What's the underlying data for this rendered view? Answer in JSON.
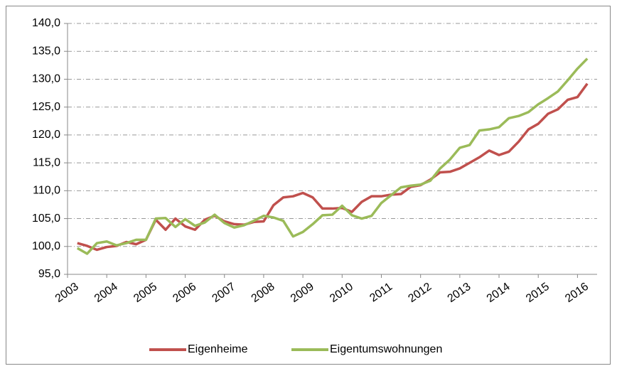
{
  "chart_data": {
    "type": "line",
    "x": [
      2003.25,
      2003.5,
      2003.75,
      2004,
      2004.25,
      2004.5,
      2004.75,
      2005,
      2005.25,
      2005.5,
      2005.75,
      2006,
      2006.25,
      2006.5,
      2006.75,
      2007,
      2007.25,
      2007.5,
      2007.75,
      2008,
      2008.25,
      2008.5,
      2008.75,
      2009,
      2009.25,
      2009.5,
      2009.75,
      2010,
      2010.25,
      2010.5,
      2010.75,
      2011,
      2011.25,
      2011.5,
      2011.75,
      2012,
      2012.25,
      2012.5,
      2012.75,
      2013,
      2013.25,
      2013.5,
      2013.75,
      2014,
      2014.25,
      2014.5,
      2014.75,
      2015,
      2015.25,
      2015.5,
      2015.75,
      2016,
      2016.25
    ],
    "series": [
      {
        "name": "Eigenheime",
        "color": "#c0504d",
        "values": [
          100.6,
          100.1,
          99.4,
          99.9,
          100.1,
          100.8,
          100.4,
          101.2,
          104.8,
          103.0,
          105.0,
          103.6,
          103.0,
          104.8,
          105.5,
          104.5,
          104.0,
          103.9,
          104.4,
          104.5,
          107.4,
          108.8,
          109.0,
          109.6,
          108.8,
          106.8,
          106.8,
          106.9,
          106.2,
          108.0,
          109.0,
          109.0,
          109.3,
          109.4,
          110.7,
          111.0,
          112.0,
          113.3,
          113.4,
          114.0,
          115.0,
          116.0,
          117.2,
          116.4,
          117.0,
          118.8,
          121.0,
          122.0,
          123.8,
          124.6,
          126.3,
          126.8,
          129.2
        ]
      },
      {
        "name": "Eigentumswohnungen",
        "color": "#9bbb59",
        "values": [
          99.7,
          98.7,
          100.6,
          100.9,
          100.2,
          100.6,
          101.2,
          101.2,
          105.0,
          105.1,
          103.5,
          104.9,
          103.7,
          104.3,
          105.7,
          104.2,
          103.4,
          103.8,
          104.6,
          105.5,
          105.2,
          104.6,
          101.8,
          102.6,
          104.0,
          105.6,
          105.7,
          107.3,
          105.6,
          105.0,
          105.5,
          107.8,
          109.2,
          110.6,
          110.9,
          111.1,
          111.8,
          114.0,
          115.6,
          117.7,
          118.2,
          120.8,
          121.0,
          121.4,
          123.0,
          123.4,
          124.1,
          125.5,
          126.6,
          127.8,
          129.8,
          131.9,
          133.7
        ]
      }
    ],
    "xlim": [
      2003,
      2016.5
    ],
    "xticks": [
      2003,
      2004,
      2005,
      2006,
      2007,
      2008,
      2009,
      2010,
      2011,
      2012,
      2013,
      2014,
      2015,
      2016
    ],
    "ylim": [
      95,
      140
    ],
    "yticks": [
      {
        "value": 95,
        "label": "95,0"
      },
      {
        "value": 100,
        "label": "100,0"
      },
      {
        "value": 105,
        "label": "105,0"
      },
      {
        "value": 110,
        "label": "110,0"
      },
      {
        "value": 115,
        "label": "115,0"
      },
      {
        "value": 120,
        "label": "120,0"
      },
      {
        "value": 125,
        "label": "125,0"
      },
      {
        "value": 130,
        "label": "130,0"
      },
      {
        "value": 135,
        "label": "135,0"
      },
      {
        "value": 140,
        "label": "140,0"
      }
    ],
    "grid": true,
    "legend": "bottom"
  }
}
